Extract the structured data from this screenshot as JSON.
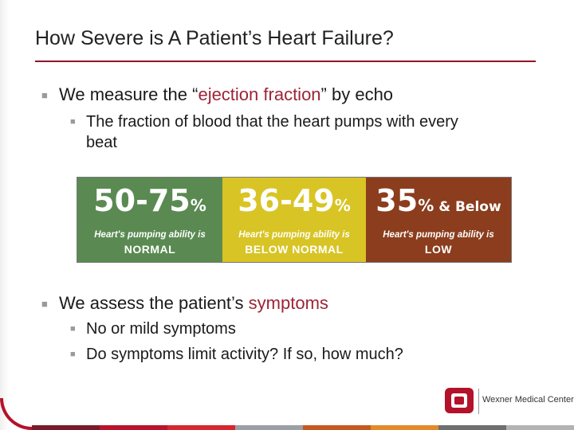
{
  "slide": {
    "title": "How Severe is A Patient’s Heart Failure?"
  },
  "bullets": {
    "b1_pre": "We measure the “",
    "b1_accent": "ejection fraction",
    "b1_post": "” by echo",
    "b1_sub1_line1": "The fraction of blood that the heart pumps with every",
    "b1_sub1_line2": "beat",
    "b2_pre": "We assess the patient’s ",
    "b2_accent": "symptoms",
    "b2_sub1": "No or mild symptoms",
    "b2_sub2": "Do symptoms limit activity? If so, how much?"
  },
  "ef_scale": {
    "segments": [
      {
        "range": "50-75",
        "pct": "%",
        "extra": "",
        "caption": "Heart's pumping ability is",
        "category": "NORMAL",
        "color": "#5a8a52"
      },
      {
        "range": "36-49",
        "pct": "%",
        "extra": "",
        "caption": "Heart's pumping ability is",
        "category": "BELOW NORMAL",
        "color": "#d8c424"
      },
      {
        "range": "35",
        "pct": "%",
        "extra": "& Below",
        "caption": "Heart's pumping ability is",
        "category": "LOW",
        "color": "#8b3d1e"
      }
    ]
  },
  "branding": {
    "org": "Wexner Medical Center",
    "logo_icon": "ohio-state-block-o-icon"
  },
  "footer_colors": [
    "#7a1b2a",
    "#b8142d",
    "#d5272f",
    "#9aa0a6",
    "#c45a1f",
    "#e28b2b",
    "#6f6f6f",
    "#b3b3b3"
  ]
}
